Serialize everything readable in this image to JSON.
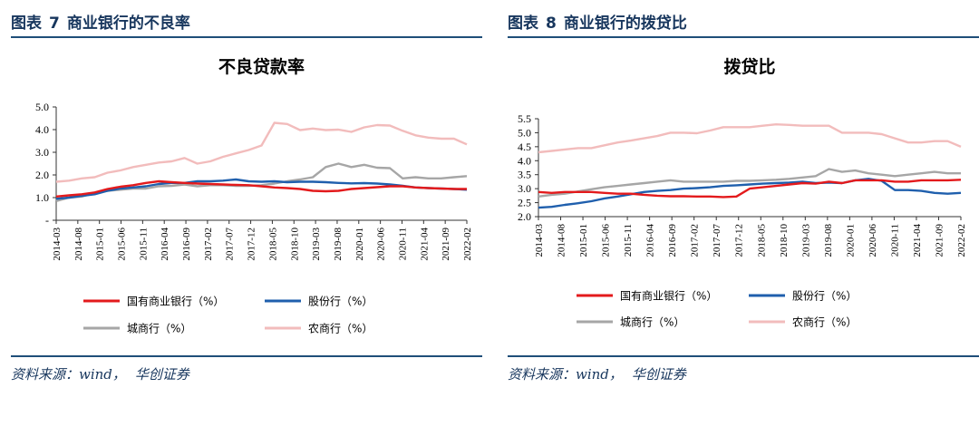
{
  "figures": [
    {
      "label": "图表",
      "number": "7",
      "caption": "商业银行的不良率",
      "source_prefix": "资料来源：wind，",
      "source_org": "华创证券",
      "chart_data": {
        "type": "line",
        "title": "不良贷款率",
        "ylim": [
          0,
          5
        ],
        "yticks": [
          "-",
          "1.0",
          "2.0",
          "3.0",
          "4.0",
          "5.0"
        ],
        "x": [
          "2014-03",
          "2014-06",
          "2014-09",
          "2014-12",
          "2015-03",
          "2015-06",
          "2015-09",
          "2015-12",
          "2016-03",
          "2016-06",
          "2016-09",
          "2016-12",
          "2017-03",
          "2017-06",
          "2017-09",
          "2017-12",
          "2018-03",
          "2018-06",
          "2018-09",
          "2018-12",
          "2019-03",
          "2019-06",
          "2019-09",
          "2019-12",
          "2020-03",
          "2020-06",
          "2020-09",
          "2020-12",
          "2021-03",
          "2021-06",
          "2021-09",
          "2021-12",
          "2022-03"
        ],
        "xticks": [
          "2014-03",
          "2014-08",
          "2015-01",
          "2015-06",
          "2015-11",
          "2016-04",
          "2016-09",
          "2017-02",
          "2017-07",
          "2017-12",
          "2018-05",
          "2018-10",
          "2019-03",
          "2019-08",
          "2020-01",
          "2020-06",
          "2020-11",
          "2021-04",
          "2021-09",
          "2022-02"
        ],
        "series": [
          {
            "name": "国有商业银行（%）",
            "color": "#e31a1c",
            "values": [
              1.05,
              1.1,
              1.15,
              1.23,
              1.38,
              1.48,
              1.55,
              1.65,
              1.72,
              1.68,
              1.65,
              1.62,
              1.6,
              1.58,
              1.56,
              1.55,
              1.5,
              1.45,
              1.42,
              1.38,
              1.3,
              1.28,
              1.3,
              1.38,
              1.42,
              1.46,
              1.5,
              1.5,
              1.45,
              1.42,
              1.4,
              1.38,
              1.38
            ]
          },
          {
            "name": "股份行（%）",
            "color": "#1f5fad",
            "values": [
              0.95,
              1.0,
              1.08,
              1.15,
              1.3,
              1.4,
              1.45,
              1.5,
              1.6,
              1.65,
              1.65,
              1.72,
              1.72,
              1.75,
              1.8,
              1.72,
              1.7,
              1.72,
              1.68,
              1.7,
              1.7,
              1.68,
              1.65,
              1.63,
              1.64,
              1.62,
              1.58,
              1.52,
              1.45,
              1.42,
              1.4,
              1.38,
              1.35
            ]
          },
          {
            "name": "城商行（%）",
            "color": "#a6a6a6",
            "values": [
              0.85,
              1.0,
              1.05,
              1.2,
              1.3,
              1.35,
              1.4,
              1.4,
              1.5,
              1.52,
              1.58,
              1.5,
              1.55,
              1.55,
              1.52,
              1.52,
              1.55,
              1.62,
              1.72,
              1.8,
              1.9,
              2.35,
              2.5,
              2.35,
              2.45,
              2.32,
              2.3,
              1.85,
              1.9,
              1.85,
              1.85,
              1.9,
              1.95
            ]
          },
          {
            "name": "农商行（%）",
            "color": "#f2bcbc",
            "values": [
              1.7,
              1.75,
              1.85,
              1.9,
              2.1,
              2.2,
              2.35,
              2.45,
              2.55,
              2.6,
              2.75,
              2.5,
              2.6,
              2.8,
              2.95,
              3.1,
              3.3,
              4.3,
              4.25,
              3.98,
              4.05,
              3.98,
              4.0,
              3.9,
              4.1,
              4.2,
              4.18,
              3.95,
              3.75,
              3.65,
              3.6,
              3.6,
              3.35
            ]
          }
        ]
      }
    },
    {
      "label": "图表",
      "number": "8",
      "caption": "商业银行的拨贷比",
      "source_prefix": "资料来源：wind，",
      "source_org": "华创证券",
      "chart_data": {
        "type": "line",
        "title": "拨贷比",
        "ylim": [
          2.0,
          5.5
        ],
        "yticks": [
          "2.0",
          "2.5",
          "3.0",
          "3.5",
          "4.0",
          "4.5",
          "5.0",
          "5.5"
        ],
        "x": [
          "2014-03",
          "2014-06",
          "2014-09",
          "2014-12",
          "2015-03",
          "2015-06",
          "2015-09",
          "2015-12",
          "2016-03",
          "2016-06",
          "2016-09",
          "2016-12",
          "2017-03",
          "2017-06",
          "2017-09",
          "2017-12",
          "2018-03",
          "2018-06",
          "2018-09",
          "2018-12",
          "2019-03",
          "2019-06",
          "2019-09",
          "2019-12",
          "2020-03",
          "2020-06",
          "2020-09",
          "2020-12",
          "2021-03",
          "2021-06",
          "2021-09",
          "2021-12",
          "2022-03"
        ],
        "xticks": [
          "2014-03",
          "2014-08",
          "2015-01",
          "2015-06",
          "2015-11",
          "2016-04",
          "2016-09",
          "2017-02",
          "2017-07",
          "2017-12",
          "2018-05",
          "2018-10",
          "2019-03",
          "2019-08",
          "2020-01",
          "2020-06",
          "2020-11",
          "2021-04",
          "2021-09",
          "2022-02"
        ],
        "series": [
          {
            "name": "国有商业银行（%）",
            "color": "#e31a1c",
            "values": [
              2.88,
              2.85,
              2.88,
              2.88,
              2.88,
              2.85,
              2.82,
              2.82,
              2.78,
              2.75,
              2.73,
              2.73,
              2.72,
              2.72,
              2.7,
              2.72,
              3.0,
              3.05,
              3.1,
              3.15,
              3.2,
              3.18,
              3.25,
              3.2,
              3.3,
              3.3,
              3.3,
              3.25,
              3.25,
              3.3,
              3.3,
              3.3,
              3.32
            ]
          },
          {
            "name": "股份行（%）",
            "color": "#1f5fad",
            "values": [
              2.32,
              2.35,
              2.42,
              2.48,
              2.55,
              2.65,
              2.72,
              2.8,
              2.88,
              2.92,
              2.95,
              3.0,
              3.02,
              3.05,
              3.1,
              3.12,
              3.15,
              3.18,
              3.2,
              3.22,
              3.25,
              3.2,
              3.22,
              3.2,
              3.3,
              3.35,
              3.28,
              2.95,
              2.95,
              2.92,
              2.85,
              2.82,
              2.85
            ]
          },
          {
            "name": "城商行（%）",
            "color": "#a6a6a6",
            "values": [
              2.72,
              2.78,
              2.82,
              2.9,
              2.98,
              3.05,
              3.1,
              3.15,
              3.2,
              3.25,
              3.3,
              3.25,
              3.25,
              3.25,
              3.25,
              3.28,
              3.28,
              3.3,
              3.32,
              3.35,
              3.4,
              3.45,
              3.7,
              3.6,
              3.65,
              3.55,
              3.5,
              3.45,
              3.5,
              3.55,
              3.6,
              3.55,
              3.55
            ]
          },
          {
            "name": "农商行（%）",
            "color": "#f2bcbc",
            "values": [
              4.3,
              4.35,
              4.4,
              4.45,
              4.45,
              4.55,
              4.65,
              4.72,
              4.8,
              4.88,
              5.0,
              5.0,
              4.98,
              5.08,
              5.2,
              5.2,
              5.2,
              5.25,
              5.3,
              5.28,
              5.25,
              5.25,
              5.25,
              5.0,
              5.0,
              5.0,
              4.95,
              4.8,
              4.65,
              4.65,
              4.7,
              4.7,
              4.5
            ]
          }
        ]
      }
    }
  ]
}
